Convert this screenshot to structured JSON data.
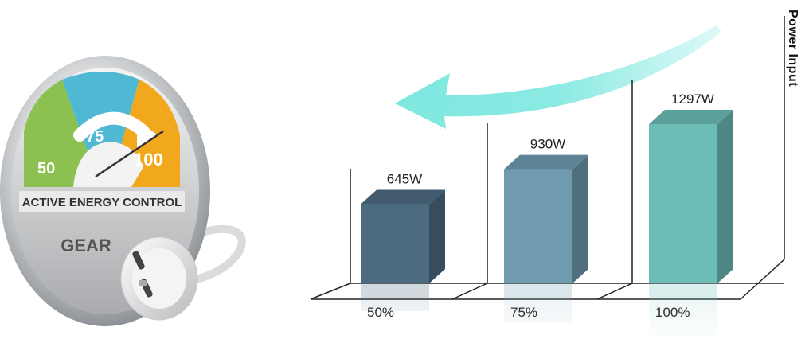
{
  "gauge": {
    "marks": [
      "50",
      "75",
      "100"
    ],
    "label": "ACTIVE ENERGY CONTROL",
    "brand": "GEAR",
    "colors": {
      "green": "#8cc152",
      "blue": "#4fb9d4",
      "orange": "#f2a81d"
    }
  },
  "chart_data": {
    "type": "bar",
    "categories": [
      "50%",
      "75%",
      "100%"
    ],
    "values": [
      645,
      930,
      1297
    ],
    "value_labels": [
      "645W",
      "930W",
      "1297W"
    ],
    "ylabel": "Power Input",
    "xlabel": "",
    "ylim": [
      0,
      1500
    ],
    "colors": [
      "#4c6a80",
      "#6f9aaf",
      "#6cbcb8"
    ],
    "legend": "none",
    "grid": false
  },
  "arrow": {
    "color": "#7ee8e0"
  }
}
